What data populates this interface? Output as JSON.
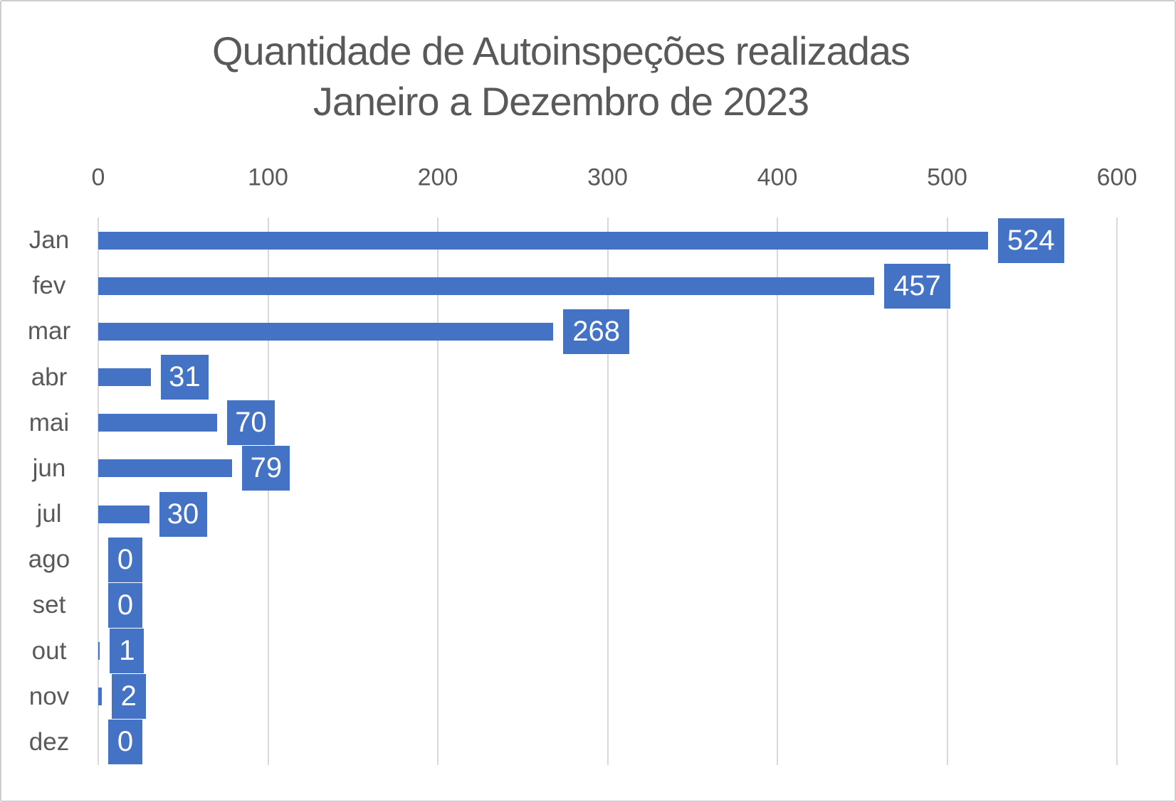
{
  "chart_data": {
    "type": "bar",
    "orientation": "horizontal",
    "title": "Quantidade de Autoinspeções realizadas Janeiro a Dezembro de 2023",
    "title_line1": "Quantidade de Autoinspeções realizadas",
    "title_line2": "Janeiro a Dezembro de 2023",
    "categories": [
      "Jan",
      "fev",
      "mar",
      "abr",
      "mai",
      "jun",
      "jul",
      "ago",
      "set",
      "out",
      "nov",
      "dez"
    ],
    "values": [
      524,
      457,
      268,
      31,
      70,
      79,
      30,
      0,
      0,
      1,
      2,
      0
    ],
    "data_labels": [
      "524",
      "457",
      "268",
      "31",
      "70",
      "79",
      "30",
      "0",
      "0",
      "1",
      "2",
      "0"
    ],
    "x_ticks": [
      "0",
      "100",
      "200",
      "300",
      "400",
      "500",
      "600"
    ],
    "x_tick_values": [
      0,
      100,
      200,
      300,
      400,
      500,
      600
    ],
    "xlim": [
      0,
      600
    ],
    "grid": true,
    "legend": "none",
    "colors": {
      "bar": "#4472c4",
      "label_box": "#4472c4",
      "label_text": "#ffffff",
      "axis_text": "#595959",
      "title_text": "#595959",
      "gridline": "#d9d9d9",
      "background": "#ffffff",
      "frame_border": "#cfcece"
    }
  }
}
